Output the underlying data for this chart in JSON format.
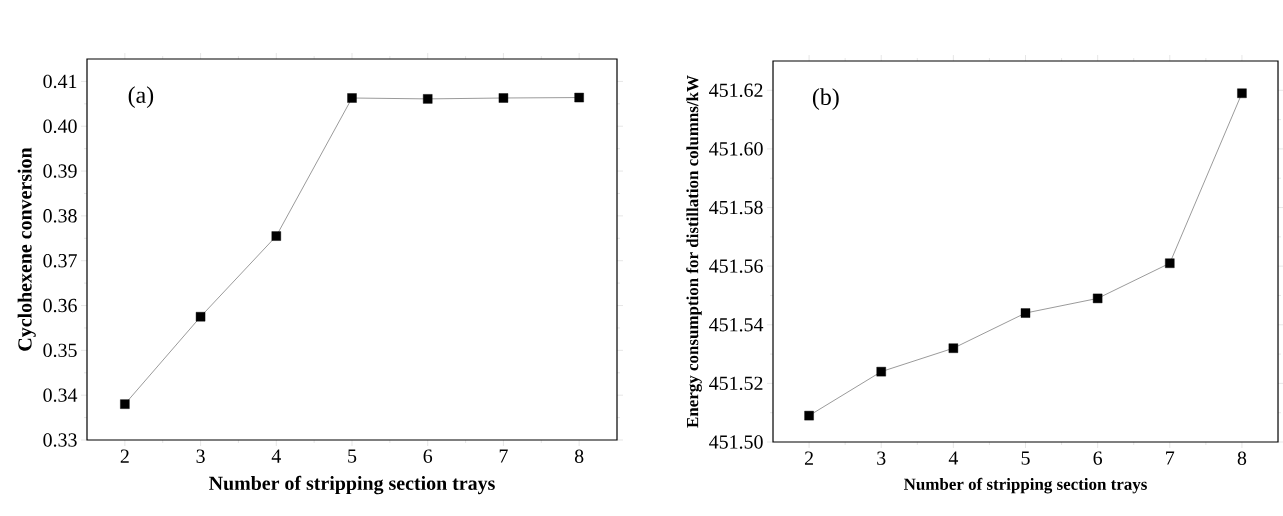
{
  "chart_data": [
    {
      "type": "line",
      "xlabel": "Number of stripping section trays",
      "ylabel": "Cyclohexene conversion",
      "annotations": [
        "(a)"
      ],
      "x": [
        2,
        3,
        4,
        5,
        6,
        7,
        8
      ],
      "series": [
        {
          "color": "#000000",
          "values": [
            0.338,
            0.3575,
            0.3755,
            0.4063,
            0.4061,
            0.4063,
            0.4064
          ]
        }
      ],
      "marker": "square",
      "line_style": "solid",
      "xlim": [
        1.5,
        8.5
      ],
      "xticks": [
        2,
        3,
        4,
        5,
        6,
        7,
        8
      ],
      "ylim": [
        0.33,
        0.415
      ],
      "yticks": [
        {
          "value": 0.33,
          "label": "0.33"
        },
        {
          "value": 0.34,
          "label": "0.34"
        },
        {
          "value": 0.35,
          "label": "0.35"
        },
        {
          "value": 0.36,
          "label": "0.36"
        },
        {
          "value": 0.37,
          "label": "0.37"
        },
        {
          "value": 0.38,
          "label": "0.38"
        },
        {
          "value": 0.39,
          "label": "0.39"
        },
        {
          "value": 0.4,
          "label": "0.40"
        },
        {
          "value": 0.41,
          "label": "0.41"
        }
      ]
    },
    {
      "type": "line",
      "xlabel": "Number of stripping section trays",
      "ylabel": "Energy consumption for distillation columns/kW",
      "annotations": [
        "(b)"
      ],
      "x": [
        2,
        3,
        4,
        5,
        6,
        7,
        8
      ],
      "series": [
        {
          "color": "#000000",
          "values": [
            451.509,
            451.524,
            451.532,
            451.544,
            451.549,
            451.561,
            451.619
          ]
        }
      ],
      "marker": "square",
      "line_style": "solid",
      "xlim": [
        1.5,
        8.5
      ],
      "xticks": [
        2,
        3,
        4,
        5,
        6,
        7,
        8
      ],
      "ylim": [
        451.5,
        451.63
      ],
      "yticks": [
        {
          "value": 451.5,
          "label": "451.50"
        },
        {
          "value": 451.52,
          "label": "451.52"
        },
        {
          "value": 451.54,
          "label": "451.54"
        },
        {
          "value": 451.56,
          "label": "451.56"
        },
        {
          "value": 451.58,
          "label": "451.58"
        },
        {
          "value": 451.6,
          "label": "451.60"
        },
        {
          "value": 451.62,
          "label": "451.62"
        }
      ]
    }
  ]
}
